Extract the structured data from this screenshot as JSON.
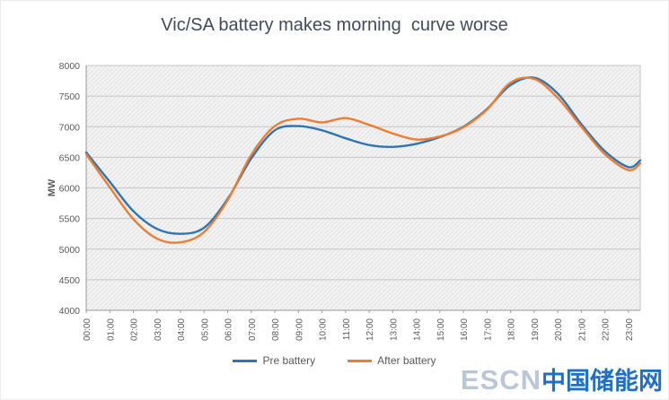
{
  "title": "Vic/SA battery makes morning  curve worse",
  "chart_data": {
    "type": "line",
    "x_hours": [
      0,
      1,
      2,
      3,
      4,
      5,
      6,
      7,
      8,
      9,
      10,
      11,
      12,
      13,
      14,
      15,
      16,
      17,
      18,
      19,
      20,
      21,
      22,
      23,
      23.5
    ],
    "x_tick_labels": [
      "00:00",
      "01:00",
      "02:00",
      "03:00",
      "04:00",
      "05:00",
      "06:00",
      "07:00",
      "08:00",
      "09:00",
      "10:00",
      "11:00",
      "12:00",
      "13:00",
      "14:00",
      "15:00",
      "16:00",
      "17:00",
      "18:00",
      "19:00",
      "20:00",
      "21:00",
      "22:00",
      "23:00"
    ],
    "ylabel": "MW",
    "ylim": [
      4000,
      8000
    ],
    "ytick_step": 500,
    "y_tick_labels": [
      "4000",
      "4500",
      "5000",
      "5500",
      "6000",
      "6500",
      "7000",
      "7500",
      "8000"
    ],
    "grid": "horizontal",
    "legend_position": "bottom",
    "series": [
      {
        "name": "Pre battery",
        "color": "#2e75b6",
        "values": [
          6580,
          6100,
          5620,
          5330,
          5250,
          5350,
          5820,
          6480,
          6940,
          7010,
          6940,
          6810,
          6700,
          6670,
          6720,
          6830,
          7000,
          7290,
          7680,
          7800,
          7540,
          7040,
          6600,
          6340,
          6450
        ]
      },
      {
        "name": "After battery",
        "color": "#ed7d31",
        "values": [
          6550,
          6010,
          5490,
          5170,
          5110,
          5280,
          5800,
          6540,
          7010,
          7130,
          7070,
          7140,
          7030,
          6890,
          6790,
          6840,
          6990,
          7280,
          7720,
          7780,
          7470,
          7000,
          6550,
          6290,
          6400
        ]
      }
    ]
  },
  "watermark": {
    "prefix": "ESCN",
    "text": "中国储能网"
  }
}
